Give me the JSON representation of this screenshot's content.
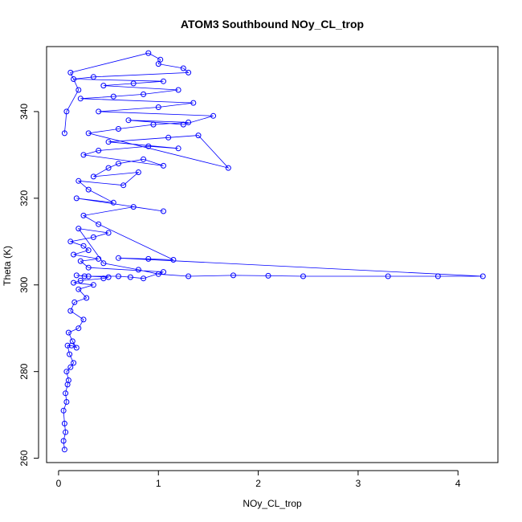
{
  "chart_data": {
    "type": "scatter",
    "title": "ATOM3 Southbound NOy_CL_trop",
    "xlabel": "NOy_CL_trop",
    "ylabel": "Theta (K)",
    "xlim": [
      -0.12,
      4.4
    ],
    "ylim": [
      259,
      355
    ],
    "xticks": [
      0,
      1,
      2,
      3,
      4
    ],
    "yticks": [
      260,
      280,
      300,
      320,
      340
    ],
    "marker": "open-circle",
    "connect_points": true,
    "grid": false,
    "legend": "none",
    "series_color": "#0000ff",
    "series": [
      {
        "x": [
          0.06,
          0.05,
          0.07,
          0.06,
          0.05,
          0.08,
          0.07,
          0.09,
          0.1,
          0.08,
          0.12,
          0.15,
          0.11,
          0.09,
          0.13,
          0.18,
          0.14,
          0.1,
          0.2,
          0.25,
          0.12,
          0.16,
          0.28,
          0.2,
          0.35,
          0.15,
          0.22,
          0.45,
          0.5,
          0.3,
          0.18,
          0.26,
          0.6,
          0.72,
          0.85,
          1.05,
          0.3,
          0.22,
          0.4,
          0.15,
          0.3,
          0.25,
          0.12,
          0.35,
          0.5,
          0.2,
          0.45,
          0.8,
          1.0,
          1.3,
          1.75,
          2.1,
          2.45,
          3.3,
          3.8,
          4.25,
          0.6,
          0.9,
          1.15,
          0.4,
          0.25,
          0.75,
          1.05,
          0.18,
          0.55,
          0.3,
          0.2,
          0.65,
          0.8,
          0.35,
          0.5,
          0.6,
          0.85,
          1.05,
          0.25,
          0.4,
          0.9,
          1.2,
          0.5,
          1.1,
          1.4,
          1.7,
          0.3,
          0.6,
          0.95,
          1.3,
          0.7,
          1.25,
          1.55,
          0.4,
          1.0,
          1.35,
          0.22,
          0.55,
          0.85,
          1.2,
          0.45,
          0.75,
          1.05,
          0.15,
          0.35,
          1.3,
          1.25,
          1.0,
          1.02,
          0.9,
          0.12,
          0.2,
          0.08,
          0.06
        ],
        "y": [
          262,
          264,
          266,
          268,
          271,
          273,
          275,
          277,
          278,
          280,
          281,
          282,
          284,
          286,
          286,
          285.5,
          287,
          289,
          290,
          292,
          294,
          296,
          297,
          299,
          300,
          300.5,
          301,
          301.5,
          301.8,
          302,
          302.2,
          302,
          302,
          301.8,
          301.5,
          303,
          304,
          305.5,
          306,
          307,
          308,
          309,
          310,
          311,
          312,
          313,
          305,
          303.5,
          302.5,
          302,
          302.2,
          302.1,
          302,
          302,
          302,
          302,
          306.2,
          306,
          305.8,
          314,
          316,
          318,
          317,
          320,
          319,
          322,
          324,
          323,
          326,
          325,
          327,
          328,
          329,
          327.5,
          330,
          331,
          332,
          331.5,
          333,
          334,
          334.5,
          327,
          335,
          336,
          337,
          337.5,
          338,
          337,
          339,
          340,
          341,
          342,
          343,
          343.5,
          344,
          345,
          346,
          346.5,
          347,
          347.5,
          348,
          349,
          350,
          351,
          352,
          353.5,
          349,
          345,
          340,
          335
        ]
      }
    ]
  }
}
